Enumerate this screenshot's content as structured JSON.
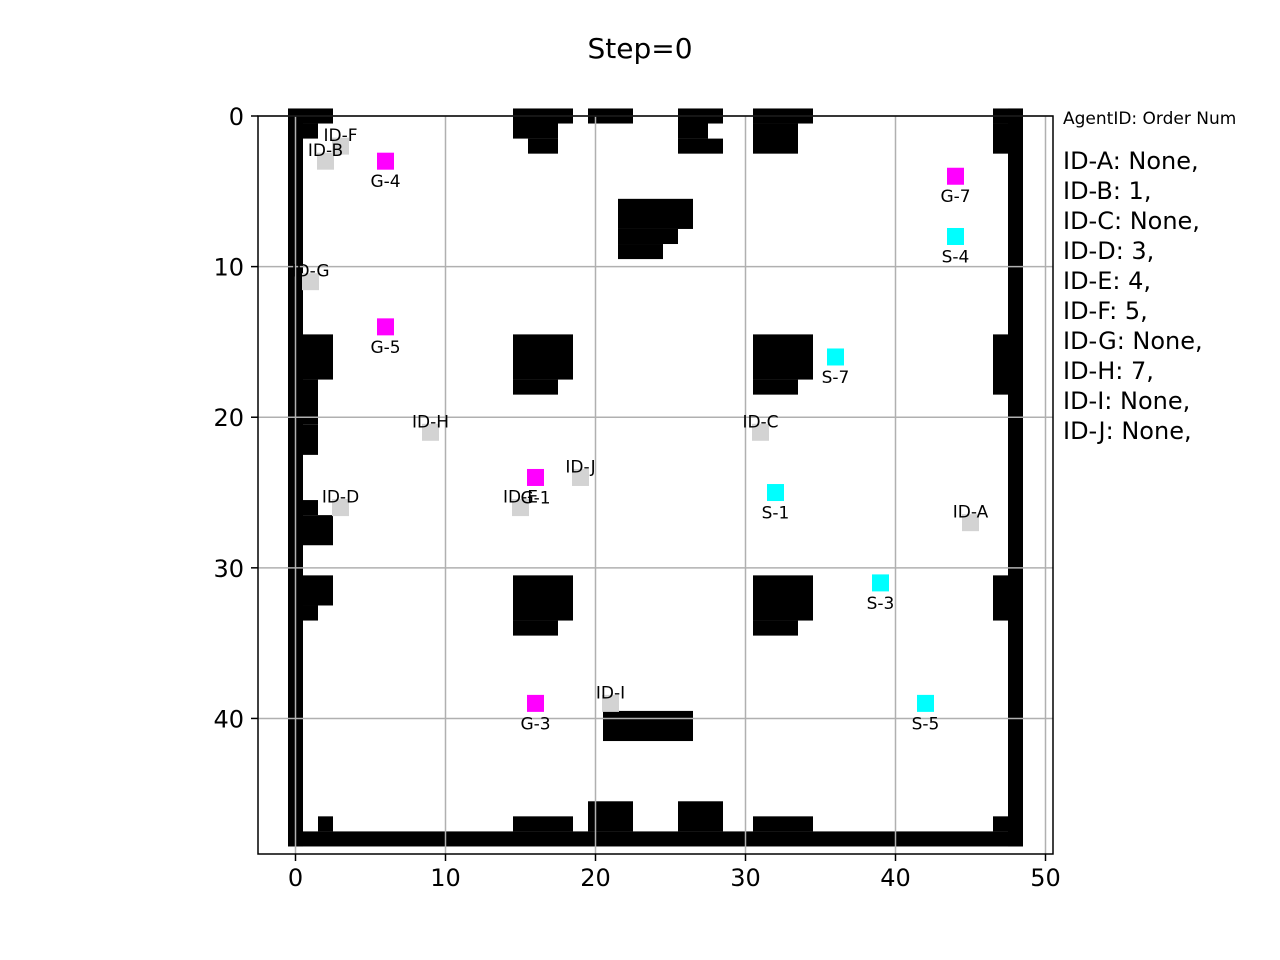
{
  "title": "Step=0",
  "legend_header": "AgentID: Order Num",
  "legend": [
    {
      "id": "ID-A",
      "order": "None"
    },
    {
      "id": "ID-B",
      "order": "1"
    },
    {
      "id": "ID-C",
      "order": "None"
    },
    {
      "id": "ID-D",
      "order": "3"
    },
    {
      "id": "ID-E",
      "order": "4"
    },
    {
      "id": "ID-F",
      "order": "5"
    },
    {
      "id": "ID-G",
      "order": "None"
    },
    {
      "id": "ID-H",
      "order": "7"
    },
    {
      "id": "ID-I",
      "order": "None"
    },
    {
      "id": "ID-J",
      "order": "None"
    }
  ],
  "colors": {
    "wall": "#000000",
    "goal": "#ff00ff",
    "station": "#00ffff",
    "agent": "#d3d3d3",
    "grid": "#b0b0b0"
  },
  "chart_data": {
    "type": "scatter",
    "xlim": [
      -2.5,
      50.5
    ],
    "ylim": [
      49,
      0
    ],
    "x_ticks": [
      0,
      10,
      20,
      30,
      40,
      50
    ],
    "y_ticks": [
      0,
      10,
      20,
      30,
      40
    ],
    "grid": true,
    "obstacles": [
      [
        0,
        0,
        1,
        49
      ],
      [
        0,
        48,
        49,
        1
      ],
      [
        48,
        0,
        1,
        49
      ],
      [
        1,
        0,
        2,
        1
      ],
      [
        1,
        1,
        1,
        1
      ],
      [
        15,
        0,
        3,
        2
      ],
      [
        16,
        2,
        2,
        1
      ],
      [
        18,
        0,
        1,
        1
      ],
      [
        20,
        0,
        3,
        1
      ],
      [
        26,
        0,
        2,
        2
      ],
      [
        28,
        0,
        1,
        1
      ],
      [
        26,
        2,
        3,
        1
      ],
      [
        31,
        0,
        4,
        1
      ],
      [
        31,
        1,
        3,
        2
      ],
      [
        47,
        0,
        2,
        1
      ],
      [
        47,
        1,
        1,
        2
      ],
      [
        22,
        6,
        5,
        2
      ],
      [
        22,
        8,
        4,
        1
      ],
      [
        22,
        9,
        3,
        1
      ],
      [
        1,
        15,
        2,
        3
      ],
      [
        1,
        18,
        1,
        3
      ],
      [
        1,
        21,
        1,
        2
      ],
      [
        15,
        15,
        4,
        3
      ],
      [
        15,
        18,
        3,
        1
      ],
      [
        31,
        15,
        4,
        3
      ],
      [
        31,
        18,
        3,
        1
      ],
      [
        47,
        15,
        1,
        4
      ],
      [
        1,
        26,
        1,
        1
      ],
      [
        1,
        27,
        2,
        2
      ],
      [
        1,
        31,
        2,
        2
      ],
      [
        1,
        33,
        1,
        1
      ],
      [
        15,
        31,
        4,
        3
      ],
      [
        15,
        34,
        3,
        1
      ],
      [
        31,
        31,
        4,
        3
      ],
      [
        31,
        34,
        3,
        1
      ],
      [
        47,
        31,
        1,
        3
      ],
      [
        21,
        40,
        6,
        2
      ],
      [
        2,
        47,
        1,
        1
      ],
      [
        20,
        46,
        3,
        2
      ],
      [
        26,
        46,
        3,
        2
      ],
      [
        31,
        47,
        4,
        1
      ],
      [
        15,
        47,
        4,
        1
      ],
      [
        47,
        47,
        1,
        1
      ]
    ],
    "goals": [
      {
        "label": "G-4",
        "x": 6,
        "y": 3
      },
      {
        "label": "G-7",
        "x": 44,
        "y": 4
      },
      {
        "label": "G-5",
        "x": 6,
        "y": 14
      },
      {
        "label": "G-1",
        "x": 16,
        "y": 24
      },
      {
        "label": "G-3",
        "x": 16,
        "y": 39
      }
    ],
    "stations": [
      {
        "label": "S-4",
        "x": 44,
        "y": 8
      },
      {
        "label": "S-7",
        "x": 36,
        "y": 16
      },
      {
        "label": "S-1",
        "x": 32,
        "y": 25
      },
      {
        "label": "S-3",
        "x": 39,
        "y": 31
      },
      {
        "label": "S-5",
        "x": 42,
        "y": 39
      }
    ],
    "agents": [
      {
        "label": "ID-F",
        "x": 3,
        "y": 2
      },
      {
        "label": "ID-B",
        "x": 2,
        "y": 3
      },
      {
        "label": "ID-G",
        "x": 1,
        "y": 11
      },
      {
        "label": "ID-H",
        "x": 9,
        "y": 21
      },
      {
        "label": "ID-C",
        "x": 31,
        "y": 21
      },
      {
        "label": "ID-J",
        "x": 19,
        "y": 24
      },
      {
        "label": "ID-D",
        "x": 3,
        "y": 26
      },
      {
        "label": "ID-E",
        "x": 15,
        "y": 26
      },
      {
        "label": "ID-A",
        "x": 45,
        "y": 27
      },
      {
        "label": "ID-I",
        "x": 21,
        "y": 39
      }
    ]
  }
}
